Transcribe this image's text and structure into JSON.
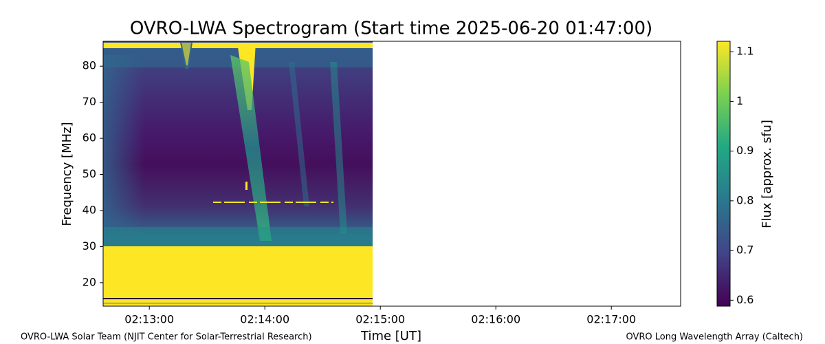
{
  "chart_data": {
    "type": "heatmap",
    "title": "OVRO-LWA Spectrogram (Start time 2025-06-20 01:47:00)",
    "x_label": "Time [UT]",
    "y_label": "Frequency [MHz]",
    "colorbar_label": "Flux [approx. sfu]",
    "xlim": [
      756,
      1056
    ],
    "xticks": [
      {
        "value": 780,
        "label": "02:13:00"
      },
      {
        "value": 840,
        "label": "02:14:00"
      },
      {
        "value": 900,
        "label": "02:15:00"
      },
      {
        "value": 960,
        "label": "02:16:00"
      },
      {
        "value": 1020,
        "label": "02:17:00"
      }
    ],
    "ylim": [
      13.5,
      86.9
    ],
    "yticks": [
      20,
      30,
      40,
      50,
      60,
      70,
      80
    ],
    "clim": [
      0.588,
      1.121
    ],
    "cticks": [
      0.6,
      0.7,
      0.8,
      0.9,
      1.0,
      1.1
    ],
    "colormap": "viridis",
    "footer_left": "OVRO-LWA Solar Team (NJIT Center for Solar-Terrestrial Research)",
    "footer_right": "OVRO Long Wavelength Array (Caltech)"
  }
}
